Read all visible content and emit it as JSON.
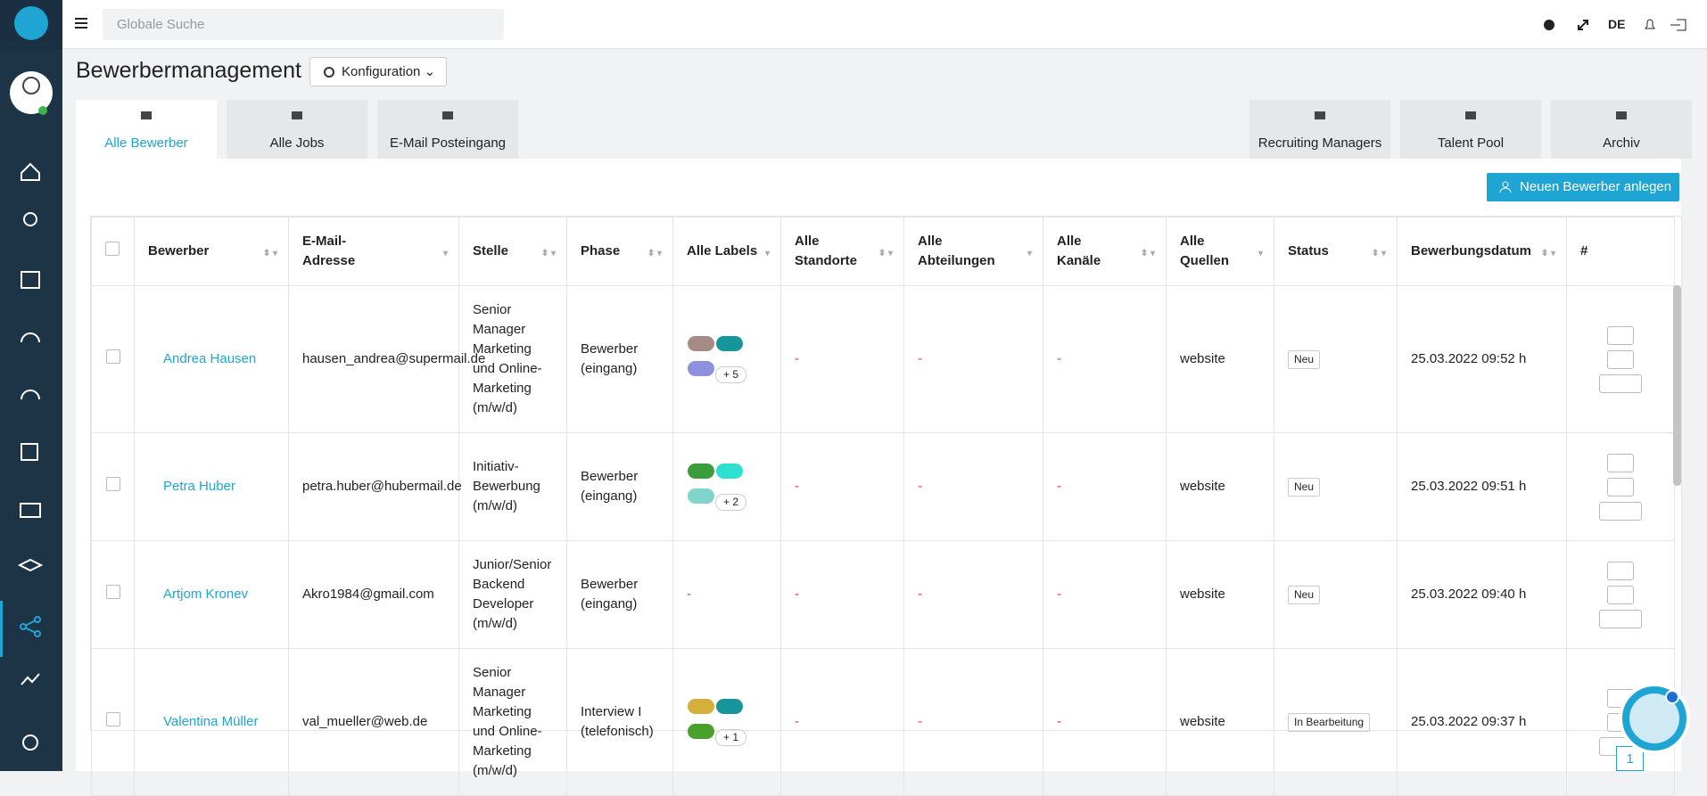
{
  "topbar": {
    "search_placeholder": "Globale Suche",
    "language": "DE"
  },
  "header": {
    "title": "Bewerbermanagement",
    "config_button": "Konfiguration"
  },
  "tabs_left": [
    "Alle Bewerber",
    "Alle Jobs",
    "E-Mail Posteingang"
  ],
  "tabs_right": [
    "Recruiting Managers",
    "Talent Pool",
    "Archiv"
  ],
  "new_button": "Neuen Bewerber anlegen",
  "table": {
    "headers": [
      "Bewerber",
      "E-Mail-Adresse",
      "Stelle",
      "Phase",
      "Alle Labels",
      "Alle Standorte",
      "Alle Abteilungen",
      "Alle Kanäle",
      "Alle Quellen",
      "Status",
      "Bewerbungsdatum",
      "#"
    ],
    "rows": [
      {
        "name": "Andrea Hausen",
        "email": "hausen_andrea@supermail.de",
        "position": "Senior Manager Marketing und Online-Marketing (m/w/d)",
        "phase": "Bewerber (eingang)",
        "labels_more": "+ 5",
        "location": "-",
        "department": "-",
        "channel": "-",
        "source": "website",
        "status": "Neu",
        "date": "25.03.2022 09:52 h"
      },
      {
        "name": "Petra Huber",
        "email": "petra.huber@hubermail.de",
        "position": "Initiativ-Bewerbung (m/w/d)",
        "phase": "Bewerber (eingang)",
        "labels_more": "+ 2",
        "location": "-",
        "department": "-",
        "channel": "-",
        "source": "website",
        "status": "Neu",
        "date": "25.03.2022 09:51 h"
      },
      {
        "name": "Artjom Kronev",
        "email": "Akro1984@gmail.com",
        "position": "Junior/Senior Backend Developer (m/w/d)",
        "phase": "Bewerber (eingang)",
        "labels_more": "-",
        "location": "-",
        "department": "-",
        "channel": "-",
        "source": "website",
        "status": "Neu",
        "date": "25.03.2022 09:40 h"
      },
      {
        "name": "Valentina Müller",
        "email": "val_mueller@web.de",
        "position": "Senior Manager Marketing und Online-Marketing (m/w/d)",
        "phase": "Interview I (telefonisch)",
        "labels_more": "+ 1",
        "location": "-",
        "department": "-",
        "channel": "-",
        "source": "website",
        "status": "In Bearbeitung",
        "date": "25.03.2022 09:37 h"
      }
    ]
  },
  "pagination": {
    "current": "1"
  }
}
